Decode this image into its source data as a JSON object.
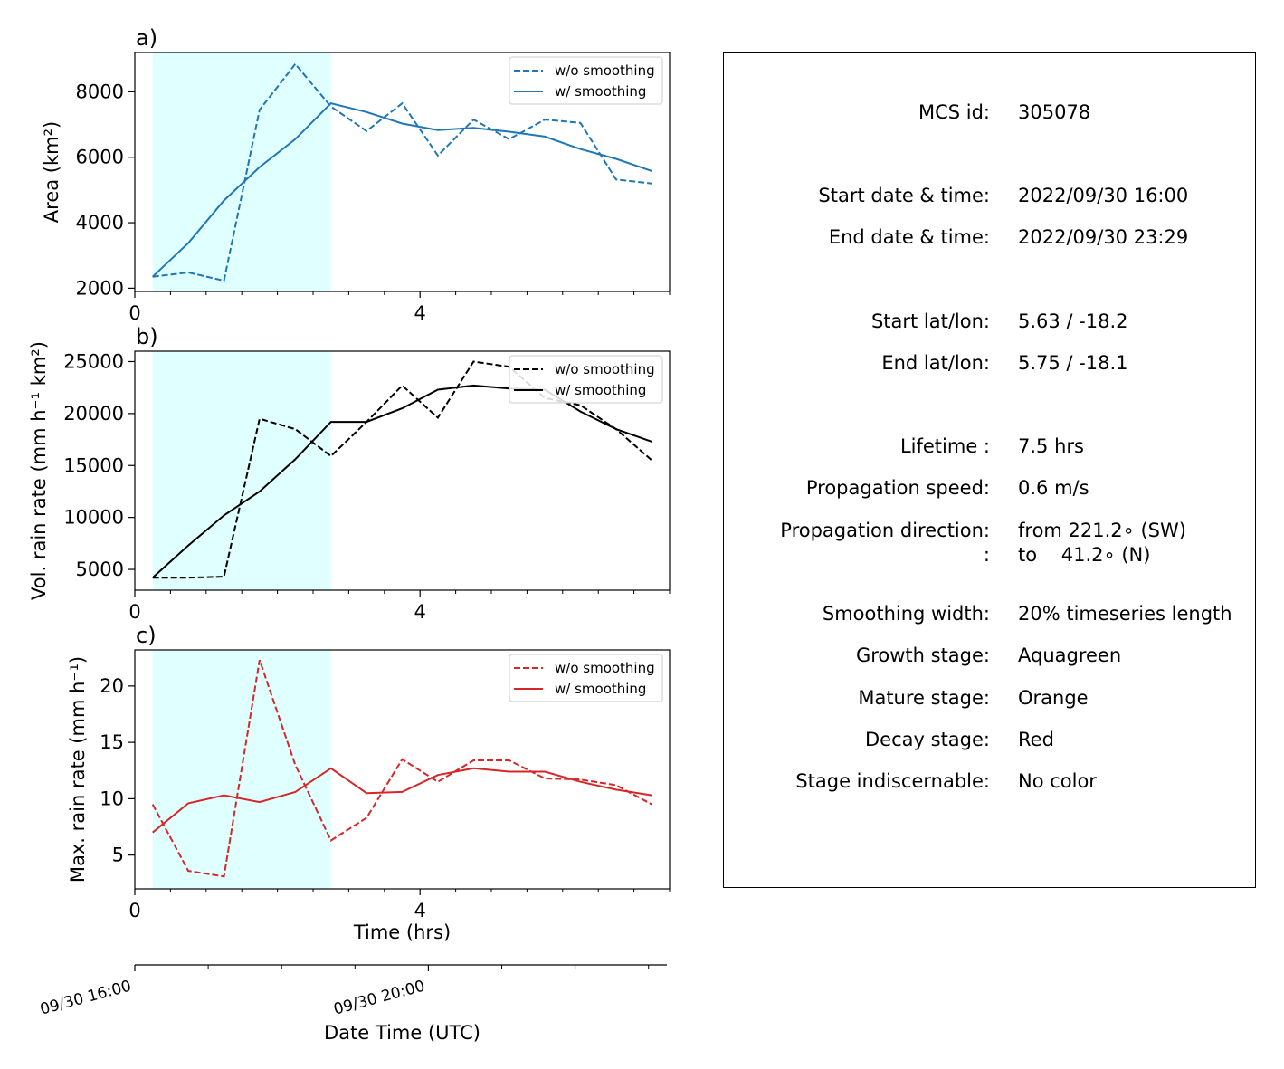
{
  "chart_data": [
    {
      "type": "line",
      "panel_label": "a)",
      "ylabel": "Area  (km²)",
      "xlabel": "",
      "xlim": [
        0,
        7.5
      ],
      "ylim": [
        1900,
        9200
      ],
      "x_ticks": [
        "0",
        "4"
      ],
      "y_ticks": [
        "2000",
        "4000",
        "6000",
        "8000"
      ],
      "highlight_span": {
        "x": [
          0.25,
          2.75
        ],
        "color": "#e0ffff"
      },
      "legend": {
        "placement": "upper right"
      },
      "x": [
        0.25,
        0.75,
        1.25,
        1.75,
        2.25,
        2.75,
        3.25,
        3.75,
        4.25,
        4.75,
        5.25,
        5.75,
        6.25,
        6.75,
        7.25
      ],
      "series": [
        {
          "name": "w/o smoothing",
          "style": "dashed",
          "color": "#1f77b4",
          "values": [
            2350,
            2480,
            2230,
            7450,
            8850,
            7550,
            6800,
            7650,
            6050,
            7150,
            6550,
            7150,
            7050,
            5320,
            5200
          ]
        },
        {
          "name": "w/ smoothing",
          "style": "solid",
          "color": "#1f77b4",
          "values": [
            2350,
            3380,
            4680,
            5700,
            6550,
            7650,
            7380,
            7030,
            6830,
            6900,
            6780,
            6630,
            6250,
            5950,
            5580
          ]
        }
      ]
    },
    {
      "type": "line",
      "panel_label": "b)",
      "ylabel": "Vol. rain rate (mm h⁻¹ km²)",
      "xlabel": "",
      "xlim": [
        0,
        7.5
      ],
      "ylim": [
        3000,
        26000
      ],
      "x_ticks": [
        "0",
        "4"
      ],
      "y_ticks": [
        "5000",
        "10000",
        "15000",
        "20000",
        "25000"
      ],
      "highlight_span": {
        "x": [
          0.25,
          2.75
        ],
        "color": "#e0ffff"
      },
      "legend": {
        "placement": "upper right"
      },
      "x": [
        0.25,
        0.75,
        1.25,
        1.75,
        2.25,
        2.75,
        3.25,
        3.75,
        4.25,
        4.75,
        5.25,
        5.75,
        6.25,
        6.75,
        7.25
      ],
      "series": [
        {
          "name": "w/o smoothing",
          "style": "dashed",
          "color": "#000000",
          "values": [
            4200,
            4200,
            4300,
            19500,
            18500,
            15900,
            19200,
            22700,
            19600,
            25000,
            24500,
            21500,
            20800,
            18500,
            15500
          ]
        },
        {
          "name": "w/ smoothing",
          "style": "solid",
          "color": "#000000",
          "values": [
            4200,
            7300,
            10200,
            12500,
            15600,
            19200,
            19200,
            20500,
            22300,
            22700,
            22400,
            22300,
            20200,
            18500,
            17300
          ]
        }
      ]
    },
    {
      "type": "line",
      "panel_label": "c)",
      "ylabel": "Max. rain rate  (mm h⁻¹)",
      "xlabel": "Time (hrs)",
      "xlim": [
        0,
        7.5
      ],
      "ylim": [
        2,
        23.2
      ],
      "x_ticks": [
        "0",
        "4"
      ],
      "y_ticks": [
        "5",
        "10",
        "15",
        "20"
      ],
      "highlight_span": {
        "x": [
          0.25,
          2.75
        ],
        "color": "#e0ffff"
      },
      "legend": {
        "placement": "upper right"
      },
      "x": [
        0.25,
        0.75,
        1.25,
        1.75,
        2.25,
        2.75,
        3.25,
        3.75,
        4.25,
        4.75,
        5.25,
        5.75,
        6.25,
        6.75,
        7.25
      ],
      "series": [
        {
          "name": "w/o smoothing",
          "style": "dashed",
          "color": "#d62728",
          "values": [
            9.5,
            3.6,
            3.1,
            22.3,
            13.0,
            6.3,
            8.3,
            13.5,
            11.5,
            13.4,
            13.4,
            11.8,
            11.7,
            11.2,
            9.5
          ]
        },
        {
          "name": "w/ smoothing",
          "style": "solid",
          "color": "#d62728",
          "values": [
            7.0,
            9.6,
            10.3,
            9.7,
            10.6,
            12.7,
            10.5,
            10.6,
            12.1,
            12.7,
            12.4,
            12.4,
            11.5,
            10.8,
            10.3
          ]
        }
      ]
    }
  ],
  "datetime_axis": {
    "xlabel": "Date Time (UTC)",
    "ticks": [
      {
        "hour": 0,
        "label": "09/30 16:00"
      },
      {
        "hour": 4,
        "label": "09/30 20:00"
      }
    ]
  },
  "info": {
    "rows": [
      {
        "label": "MCS id:",
        "value": "305078"
      },
      {
        "label": "Start date & time:",
        "value": "2022/09/30 16:00"
      },
      {
        "label": "End date & time:",
        "value": "2022/09/30 23:29"
      },
      {
        "label": "Start lat/lon:",
        "value": "5.63 / -18.2"
      },
      {
        "label": "End lat/lon:",
        "value": "5.75 / -18.1"
      },
      {
        "label": "Lifetime :",
        "value": "7.5 hrs"
      },
      {
        "label": "Propagation speed:",
        "value": "0.6 m/s"
      },
      {
        "label": "Propagation direction:",
        "value": "from 221.2∘ (SW)"
      },
      {
        "label": ":",
        "value": "to    41.2∘ (N)"
      },
      {
        "label": "Smoothing width:",
        "value": "20% timeseries length"
      },
      {
        "label": "Growth stage:",
        "value": "Aquagreen"
      },
      {
        "label": "Mature stage:",
        "value": "Orange"
      },
      {
        "label": "Decay stage:",
        "value": "Red"
      },
      {
        "label": "Stage indiscernable:",
        "value": "No color"
      }
    ]
  }
}
